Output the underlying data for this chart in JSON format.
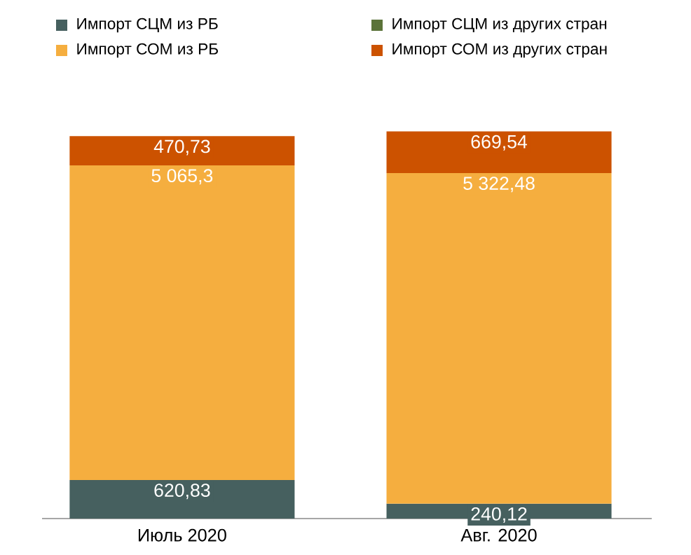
{
  "chart_data": {
    "type": "bar",
    "stacked": true,
    "legend": "top",
    "categories": [
      "Июль 2020",
      "Авг. 2020"
    ],
    "series": [
      {
        "name": "Импорт СЦМ из РБ",
        "color": "#46605f",
        "values": [
          620.83,
          240.12
        ],
        "value_labels": [
          "620,83",
          "240,12"
        ]
      },
      {
        "name": "Импорт СЦМ из других стран",
        "color": "#5b7339",
        "values": [
          null,
          null
        ]
      },
      {
        "name": "Импорт СОМ из РБ",
        "color": "#f5ae3f",
        "values": [
          5065.3,
          5322.48
        ],
        "value_labels": [
          "5 065,3",
          "5 322,48"
        ]
      },
      {
        "name": "Импорт СОМ из других стран",
        "color": "#cc5200",
        "values": [
          470.73,
          669.54
        ],
        "value_labels": [
          "470,73",
          "669,54"
        ]
      }
    ]
  }
}
